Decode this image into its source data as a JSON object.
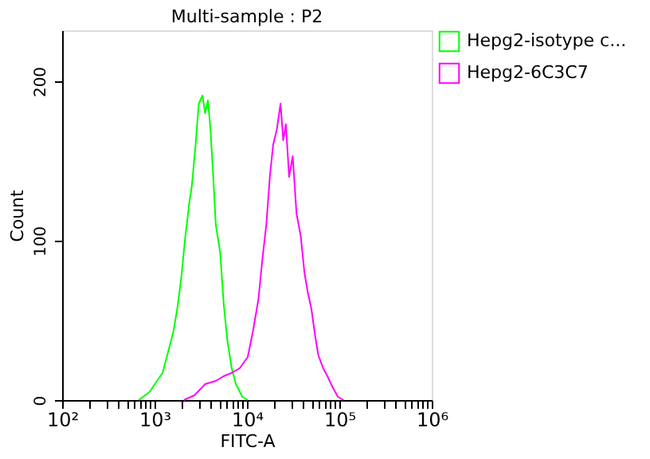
{
  "chart_data": {
    "type": "line",
    "title": "Multi-sample : P2",
    "xlabel": "FITC-A",
    "ylabel": "Count",
    "log": "x",
    "legend": "top right",
    "grid": false,
    "marker": "none",
    "line_style": "solid",
    "xlim": [
      100,
      1000000
    ],
    "ylim": [
      0,
      232
    ],
    "xticks": [
      {
        "value": 100,
        "label": "10²"
      },
      {
        "value": 200,
        "label": null
      },
      {
        "value": 300,
        "label": null
      },
      {
        "value": 400,
        "label": null
      },
      {
        "value": 500,
        "label": null
      },
      {
        "value": 600,
        "label": null
      },
      {
        "value": 700,
        "label": null
      },
      {
        "value": 800,
        "label": null
      },
      {
        "value": 900,
        "label": null
      },
      {
        "value": 1000,
        "label": "10³"
      },
      {
        "value": 2000,
        "label": null
      },
      {
        "value": 3000,
        "label": null
      },
      {
        "value": 4000,
        "label": null
      },
      {
        "value": 5000,
        "label": null
      },
      {
        "value": 6000,
        "label": null
      },
      {
        "value": 7000,
        "label": null
      },
      {
        "value": 8000,
        "label": null
      },
      {
        "value": 9000,
        "label": null
      },
      {
        "value": 10000,
        "label": "10⁴"
      },
      {
        "value": 20000,
        "label": null
      },
      {
        "value": 30000,
        "label": null
      },
      {
        "value": 40000,
        "label": null
      },
      {
        "value": 50000,
        "label": null
      },
      {
        "value": 60000,
        "label": null
      },
      {
        "value": 70000,
        "label": null
      },
      {
        "value": 80000,
        "label": null
      },
      {
        "value": 90000,
        "label": null
      },
      {
        "value": 100000,
        "label": "10⁵"
      },
      {
        "value": 200000,
        "label": null
      },
      {
        "value": 300000,
        "label": null
      },
      {
        "value": 400000,
        "label": null
      },
      {
        "value": 500000,
        "label": null
      },
      {
        "value": 600000,
        "label": null
      },
      {
        "value": 700000,
        "label": null
      },
      {
        "value": 800000,
        "label": null
      },
      {
        "value": 900000,
        "label": null
      },
      {
        "value": 1000000,
        "label": "10⁶"
      }
    ],
    "yticks": [
      0,
      100,
      200
    ],
    "series": [
      {
        "name": "Hepg2-isotype c...",
        "color": "#00ff00",
        "x": [
          675,
          879,
          1220,
          1400,
          1600,
          1770,
          1950,
          2130,
          2370,
          2540,
          2780,
          3010,
          3300,
          3530,
          3780,
          4030,
          4310,
          4600,
          5120,
          5610,
          6150,
          6840,
          7600,
          8910,
          10200
        ],
        "values": [
          0,
          5,
          17,
          30,
          43,
          58,
          77,
          100,
          123,
          135,
          160,
          186,
          191,
          180,
          188,
          170,
          141,
          110,
          93,
          60,
          37,
          20,
          10,
          2,
          0
        ]
      },
      {
        "name": "Hepg2-6C3C7",
        "color": "#ff00ff",
        "x": [
          2080,
          2710,
          3530,
          4600,
          5610,
          6840,
          8360,
          10200,
          11600,
          13300,
          14800,
          16200,
          17700,
          19200,
          21100,
          23100,
          24700,
          26400,
          28600,
          31300,
          34400,
          38200,
          41900,
          45400,
          49900,
          54800,
          59300,
          66800,
          74300,
          84700,
          96600,
          111000
        ],
        "values": [
          0,
          3,
          10,
          12,
          15,
          17,
          20,
          27,
          43,
          63,
          90,
          110,
          140,
          160,
          170,
          186,
          163,
          173,
          140,
          153,
          117,
          103,
          80,
          68,
          57,
          40,
          28,
          20,
          15,
          8,
          2,
          0
        ]
      }
    ]
  }
}
